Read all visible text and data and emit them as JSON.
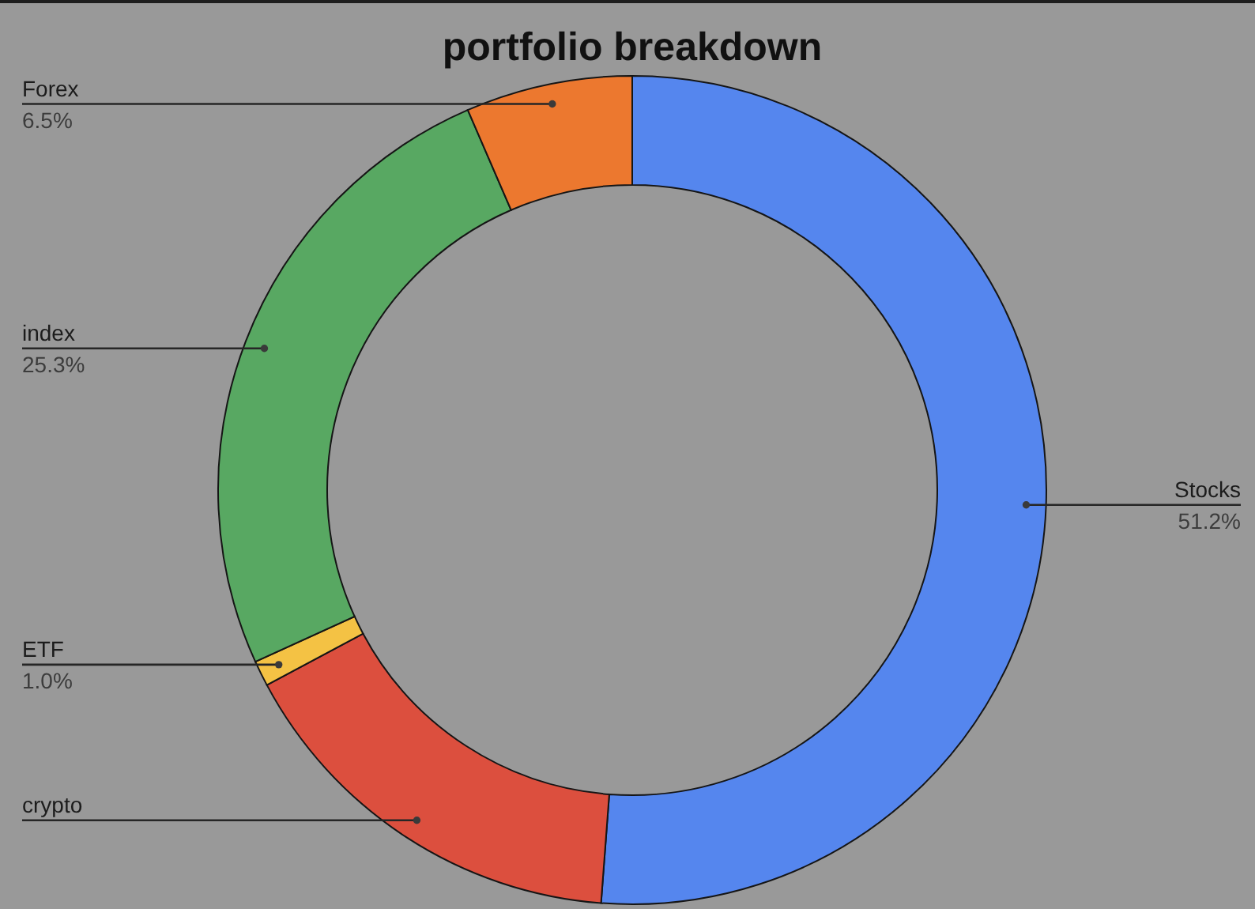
{
  "chart_data": {
    "type": "donut",
    "title": "portfolio breakdown",
    "categories": [
      "Stocks",
      "crypto",
      "ETF",
      "index",
      "Forex"
    ],
    "values": [
      51.2,
      16.0,
      1.0,
      25.3,
      6.5
    ],
    "colors": [
      "#5586ee",
      "#dc4f3e",
      "#f4c244",
      "#58a862",
      "#ec782f"
    ],
    "value_labels": [
      "51.2%",
      null,
      "1.0%",
      "25.3%",
      "6.5%"
    ]
  }
}
